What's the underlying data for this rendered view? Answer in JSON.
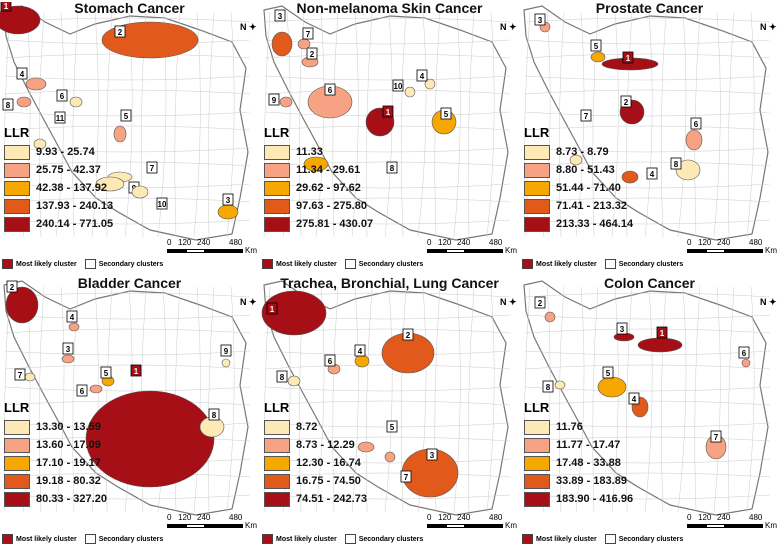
{
  "colors": {
    "class1": "#fde9b5",
    "class2": "#f7a283",
    "class3": "#f7a800",
    "class4": "#e25a1b",
    "class5": "#a50f15"
  },
  "common": {
    "llr_label": "LLR",
    "most_likely": "Most likely cluster",
    "secondary": "Secondary clusters",
    "scale_ticks": [
      "0",
      "120",
      "240",
      "480"
    ],
    "scale_unit": "Km",
    "north": "N"
  },
  "panels": [
    {
      "title": "Stomach Cancer",
      "legend": [
        "9.93 - 25.74",
        "25.75 - 42.37",
        "42.38 - 137.92",
        "137.93 - 240.13",
        "240.14 - 771.05"
      ],
      "cluster_labels": [
        "1",
        "2",
        "3",
        "4",
        "5",
        "6",
        "7",
        "8",
        "9",
        "10",
        "11"
      ]
    },
    {
      "title": "Non-melanoma Skin Cancer",
      "legend": [
        "11.33",
        "11.34 - 29.61",
        "29.62 - 97.62",
        "97.63 - 275.80",
        "275.81 - 430.07"
      ],
      "cluster_labels": [
        "1",
        "2",
        "3",
        "4",
        "5",
        "6",
        "7",
        "8",
        "9",
        "10"
      ]
    },
    {
      "title": "Prostate Cancer",
      "legend": [
        "8.73 - 8.79",
        "8.80 - 51.43",
        "51.44 - 71.40",
        "71.41 - 213.32",
        "213.33 - 464.14"
      ],
      "cluster_labels": [
        "1",
        "2",
        "3",
        "4",
        "5",
        "6",
        "7",
        "8"
      ]
    },
    {
      "title": "Bladder Cancer",
      "legend": [
        "13.30 - 13.59",
        "13.60 - 17.09",
        "17.10 - 19.17",
        "19.18 - 80.32",
        "80.33 - 327.20"
      ],
      "cluster_labels": [
        "1",
        "2",
        "3",
        "4",
        "5",
        "6",
        "7",
        "8",
        "9"
      ]
    },
    {
      "title": "Trachea, Bronchial, Lung  Cancer",
      "legend": [
        "8.72",
        "8.73 - 12.29",
        "12.30 - 16.74",
        "16.75 - 74.50",
        "74.51 - 242.73"
      ],
      "cluster_labels": [
        "1",
        "2",
        "3",
        "4",
        "5",
        "6",
        "7",
        "8"
      ]
    },
    {
      "title": "Colon  Cancer",
      "legend": [
        "11.76",
        "11.77 - 17.47",
        "17.48 - 33.88",
        "33.89 - 183.89",
        "183.90 - 416.96"
      ],
      "cluster_labels": [
        "1",
        "2",
        "3",
        "4",
        "5",
        "6",
        "7",
        "8"
      ]
    }
  ]
}
